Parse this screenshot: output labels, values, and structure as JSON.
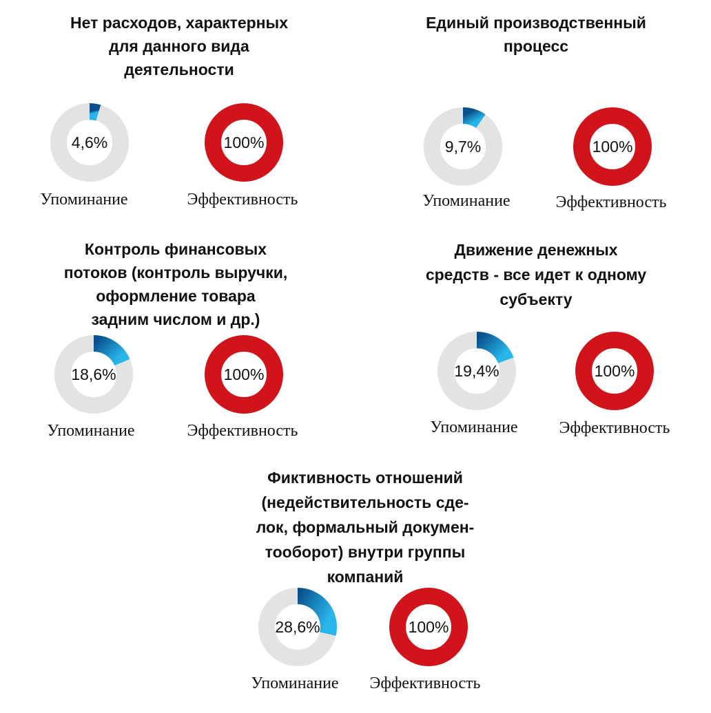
{
  "colors": {
    "track": "#e3e3e3",
    "mention_dark": "#0a4f8c",
    "mention_light": "#28b6ea",
    "effectiveness": "#d1141b",
    "text": "#111111"
  },
  "labels": {
    "mention": "Упоминание",
    "effectiveness": "Эффективность"
  },
  "chart_data": [
    {
      "type": "donut",
      "title_lines": [
        "Нет расходов, характерных",
        "для данного вида",
        "деятельности"
      ],
      "series": [
        {
          "name": "Упоминание",
          "value": 4.6,
          "label": "4,6%"
        },
        {
          "name": "Эффективность",
          "value": 100,
          "label": "100%"
        }
      ]
    },
    {
      "type": "donut",
      "title_lines": [
        "Единый производственный",
        "процесс"
      ],
      "series": [
        {
          "name": "Упоминание",
          "value": 9.7,
          "label": "9,7%"
        },
        {
          "name": "Эффективность",
          "value": 100,
          "label": "100%"
        }
      ]
    },
    {
      "type": "donut",
      "title_lines": [
        "Контроль финансовых",
        "потоков (контроль выручки,",
        "оформление  товара",
        "задним числом и др.)"
      ],
      "series": [
        {
          "name": "Упоминание",
          "value": 18.6,
          "label": "18,6%"
        },
        {
          "name": "Эффективность",
          "value": 100,
          "label": "100%"
        }
      ]
    },
    {
      "type": "donut",
      "title_lines": [
        "Движение денежных",
        "средств - все идет к одному",
        "субъекту"
      ],
      "series": [
        {
          "name": "Упоминание",
          "value": 19.4,
          "label": "19,4%"
        },
        {
          "name": "Эффективность",
          "value": 100,
          "label": "100%"
        }
      ]
    },
    {
      "type": "donut",
      "title_lines": [
        "Фиктивность отношений",
        "(недействительность сде-",
        "лок, формальный докумен-",
        "тооборот) внутри группы",
        "компаний"
      ],
      "series": [
        {
          "name": "Упоминание",
          "value": 28.6,
          "label": "28,6%"
        },
        {
          "name": "Эффективность",
          "value": 100,
          "label": "100%"
        }
      ]
    }
  ]
}
